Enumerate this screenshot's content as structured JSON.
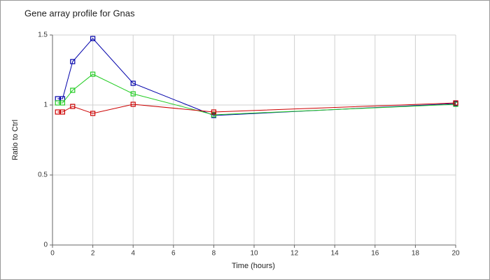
{
  "chart_data": {
    "type": "line",
    "title": "Gene array profile for Gnas",
    "x_label": "Time (hours)",
    "y_label": "Ratio to Ctrl",
    "x": [
      0.25,
      0.5,
      1,
      2,
      4,
      8,
      20
    ],
    "series": [
      {
        "color": "#0000aa",
        "values": [
          1.045,
          1.045,
          1.31,
          1.475,
          1.155,
          0.925,
          1.01
        ]
      },
      {
        "color": "#22cc22",
        "values": [
          1.015,
          1.015,
          1.105,
          1.22,
          1.08,
          0.93,
          1.005
        ]
      },
      {
        "color": "#cc0000",
        "values": [
          0.95,
          0.95,
          0.99,
          0.94,
          1.005,
          0.95,
          1.015
        ]
      }
    ],
    "xlim": [
      0,
      20
    ],
    "xticks": [
      0,
      2,
      4,
      6,
      8,
      10,
      12,
      14,
      16,
      18,
      20
    ],
    "ylim": [
      0,
      1.5
    ],
    "yticks": [
      0,
      0.5,
      1,
      1.5
    ],
    "grid": true
  }
}
